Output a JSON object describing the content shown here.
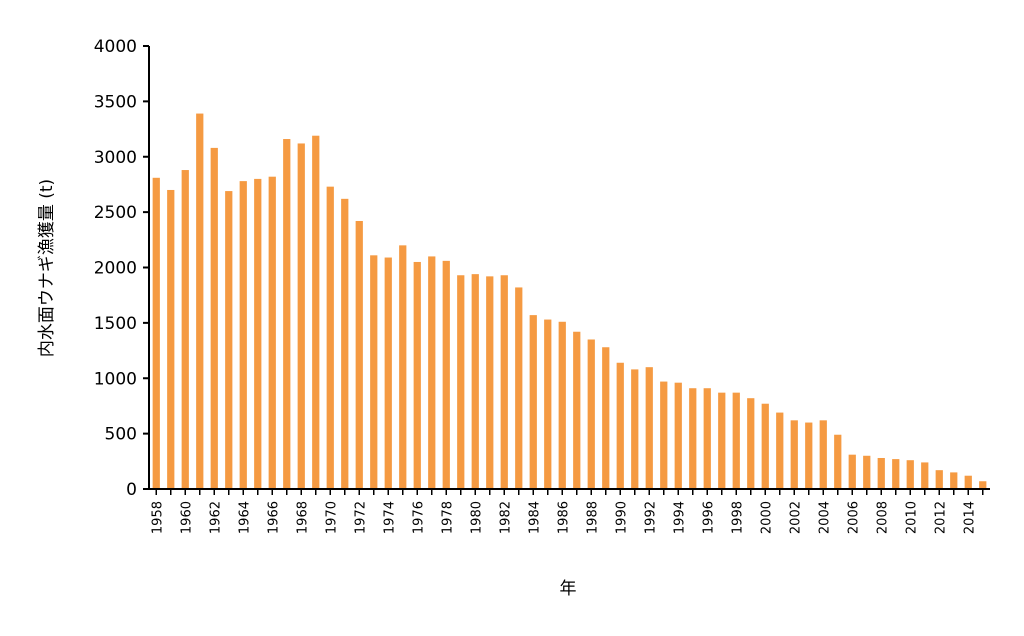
{
  "chart_data": {
    "type": "bar",
    "title": "",
    "xlabel": "年",
    "ylabel": "内水面ウナギ漁獲量 (t)",
    "ylim": [
      0,
      4000
    ],
    "yticks": [
      0,
      500,
      1000,
      1500,
      2000,
      2500,
      3000,
      3500,
      4000
    ],
    "grid": false,
    "legend": "none",
    "bar_color": "#F59A42",
    "categories": [
      1958,
      1959,
      1960,
      1961,
      1962,
      1963,
      1964,
      1965,
      1966,
      1967,
      1968,
      1969,
      1970,
      1971,
      1972,
      1973,
      1974,
      1975,
      1976,
      1977,
      1978,
      1979,
      1980,
      1981,
      1982,
      1983,
      1984,
      1985,
      1986,
      1987,
      1988,
      1989,
      1990,
      1991,
      1992,
      1993,
      1994,
      1995,
      1996,
      1997,
      1998,
      1999,
      2000,
      2001,
      2002,
      2003,
      2004,
      2005,
      2006,
      2007,
      2008,
      2009,
      2010,
      2011,
      2012,
      2013,
      2014,
      2015
    ],
    "x_tick_labels": [
      "1958",
      "1960",
      "1962",
      "1964",
      "1966",
      "1968",
      "1970",
      "1972",
      "1974",
      "1976",
      "1978",
      "1980",
      "1982",
      "1984",
      "1986",
      "1988",
      "1990",
      "1992",
      "1994",
      "1996",
      "1998",
      "2000",
      "2002",
      "2004",
      "2006",
      "2008",
      "2010",
      "2012",
      "2014"
    ],
    "values": [
      2810,
      2700,
      2880,
      3390,
      3080,
      2690,
      2780,
      2800,
      2820,
      3160,
      3120,
      3190,
      2730,
      2620,
      2420,
      2110,
      2090,
      2200,
      2050,
      2100,
      2060,
      1930,
      1940,
      1920,
      1930,
      1820,
      1570,
      1530,
      1510,
      1420,
      1350,
      1280,
      1140,
      1080,
      1100,
      970,
      960,
      910,
      910,
      870,
      870,
      820,
      770,
      690,
      620,
      600,
      620,
      490,
      310,
      300,
      280,
      270,
      260,
      240,
      170,
      150,
      120,
      70
    ]
  }
}
